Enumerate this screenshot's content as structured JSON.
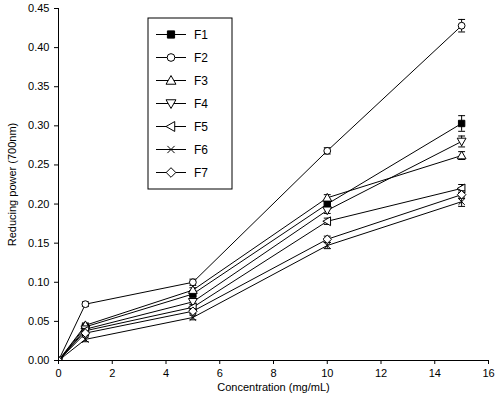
{
  "chart_data": {
    "type": "line",
    "x_label": "Concentration (mg/mL)",
    "y_label": "Reducing power (700nm)",
    "x": [
      0,
      1,
      5,
      10,
      15
    ],
    "series": [
      {
        "name": "F1",
        "color": "#000000",
        "marker": "square",
        "values": [
          0,
          0.043,
          0.085,
          0.2,
          0.303
        ],
        "errors": [
          0,
          0.003,
          0.004,
          0.005,
          0.01
        ]
      },
      {
        "name": "F2",
        "color": "#000000",
        "marker": "circle-open",
        "values": [
          0,
          0.072,
          0.1,
          0.268,
          0.428
        ],
        "errors": [
          0,
          0.003,
          0.004,
          0.004,
          0.008
        ]
      },
      {
        "name": "F3",
        "color": "#000000",
        "marker": "triangle-up-open",
        "values": [
          0,
          0.045,
          0.09,
          0.208,
          0.262
        ],
        "errors": [
          0,
          0.003,
          0.003,
          0.004,
          0.005
        ]
      },
      {
        "name": "F4",
        "color": "#000000",
        "marker": "triangle-down-open",
        "values": [
          0,
          0.04,
          0.075,
          0.192,
          0.28
        ],
        "errors": [
          0,
          0.003,
          0.003,
          0.004,
          0.007
        ]
      },
      {
        "name": "F5",
        "color": "#000000",
        "marker": "triangle-left-open",
        "values": [
          0,
          0.038,
          0.068,
          0.178,
          0.22
        ],
        "errors": [
          0,
          0.003,
          0.003,
          0.004,
          0.005
        ]
      },
      {
        "name": "F6",
        "color": "#000000",
        "marker": "x",
        "values": [
          0,
          0.027,
          0.055,
          0.147,
          0.203
        ],
        "errors": [
          0,
          0.003,
          0.003,
          0.004,
          0.006
        ]
      },
      {
        "name": "F7",
        "color": "#000000",
        "marker": "diamond-open",
        "values": [
          0,
          0.035,
          0.063,
          0.155,
          0.212
        ],
        "errors": [
          0,
          0.003,
          0.003,
          0.004,
          0.005
        ]
      }
    ],
    "xlim": [
      0,
      16
    ],
    "xticks": [
      0,
      2,
      4,
      6,
      8,
      10,
      12,
      14,
      16
    ],
    "ylim": [
      0,
      0.45
    ],
    "yticks": [
      {
        "value": 0,
        "label": "0.00"
      },
      {
        "value": 0.05,
        "label": "0.05"
      },
      {
        "value": 0.1,
        "label": "0.10"
      },
      {
        "value": 0.15,
        "label": "0.15"
      },
      {
        "value": 0.2,
        "label": "0.20"
      },
      {
        "value": 0.25,
        "label": "0.25"
      },
      {
        "value": 0.3,
        "label": "0.30"
      },
      {
        "value": 0.35,
        "label": "0.35"
      },
      {
        "value": 0.4,
        "label": "0.40"
      },
      {
        "value": 0.45,
        "label": "0.45"
      }
    ],
    "legend": "upper-left",
    "grid": false
  }
}
